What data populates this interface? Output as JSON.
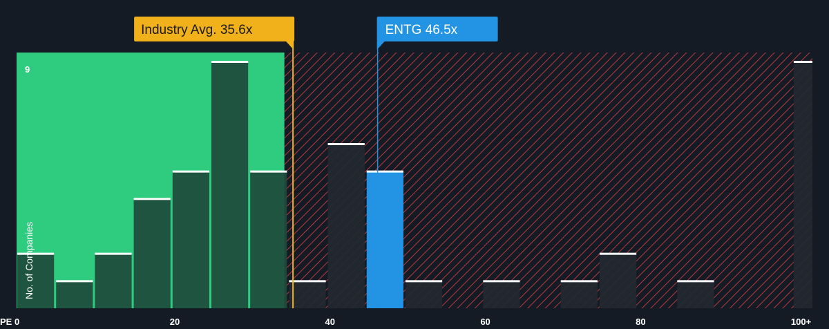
{
  "chart_data": {
    "type": "bar",
    "metric_label": "PE",
    "ylabel": "No. of Companies",
    "ymax_label": "9",
    "ylim": [
      0,
      9
    ],
    "xlim": [
      0,
      102.5
    ],
    "x_ticks": [
      {
        "value": 0,
        "label": "0"
      },
      {
        "value": 20,
        "label": "20"
      },
      {
        "value": 40,
        "label": "40"
      },
      {
        "value": 60,
        "label": "60"
      },
      {
        "value": 80,
        "label": "80"
      },
      {
        "value": 100,
        "label": "100+"
      }
    ],
    "bins": [
      {
        "x0": 0,
        "x1": 5,
        "count": 2
      },
      {
        "x0": 5,
        "x1": 10,
        "count": 1
      },
      {
        "x0": 10,
        "x1": 15,
        "count": 2
      },
      {
        "x0": 15,
        "x1": 20,
        "count": 4
      },
      {
        "x0": 20,
        "x1": 25,
        "count": 5
      },
      {
        "x0": 25,
        "x1": 30,
        "count": 9
      },
      {
        "x0": 30,
        "x1": 35,
        "count": 5
      },
      {
        "x0": 35,
        "x1": 40,
        "count": 1
      },
      {
        "x0": 40,
        "x1": 45,
        "count": 6
      },
      {
        "x0": 45,
        "x1": 50,
        "count": 5,
        "highlight": true
      },
      {
        "x0": 50,
        "x1": 55,
        "count": 1
      },
      {
        "x0": 60,
        "x1": 65,
        "count": 1
      },
      {
        "x0": 70,
        "x1": 75,
        "count": 1
      },
      {
        "x0": 75,
        "x1": 80,
        "count": 2
      },
      {
        "x0": 85,
        "x1": 90,
        "count": 1
      },
      {
        "x0": 100,
        "x1": 105,
        "count": 9
      }
    ],
    "industry_avg": {
      "value": 35.6,
      "label": "Industry Avg. 35.6x"
    },
    "company": {
      "value": 46.5,
      "label": "ENTG 46.5x"
    },
    "fair_zone_max": 34.5,
    "colors": {
      "background": "#151b24",
      "fair_zone": "#2fcc7f",
      "bar_in_fair": "#1e4a3c",
      "bar_overvalued": "#222831",
      "hatch": "#b63a3e",
      "highlight": "#2393e3",
      "industry": "#f0b11b",
      "company": "#2393e3",
      "bar_cap": "#ffffff"
    }
  }
}
